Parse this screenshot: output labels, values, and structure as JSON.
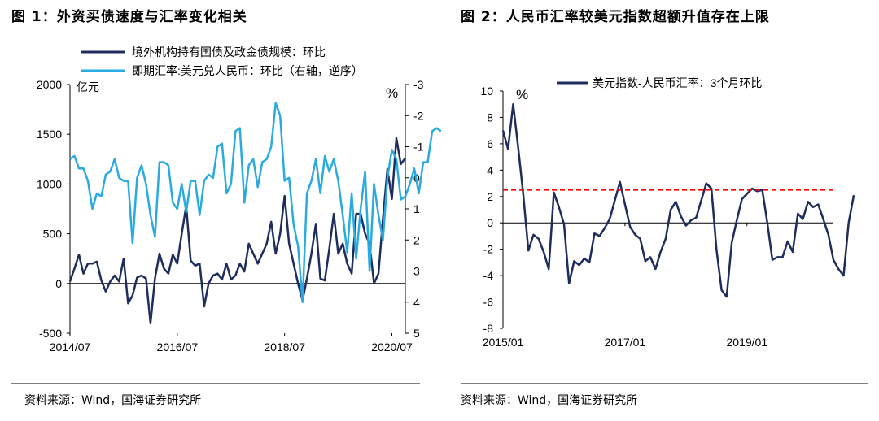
{
  "figure1": {
    "title": "图 1：外资买债速度与汇率变化相关",
    "source": "资料来源：Wind，国海证券研究所"
  },
  "figure2": {
    "title": "图 2：人民币汇率较美元指数超额升值存在上限",
    "source": "资料来源：Wind，国海证券研究所"
  },
  "chart_data": [
    {
      "type": "line",
      "left_unit": "亿元",
      "right_unit": "%",
      "xticks": [
        "2014/07",
        "2016/07",
        "2018/07",
        "2020/07"
      ],
      "x_range": [
        "2014/07",
        "2020/10"
      ],
      "yticks_left": [
        -500,
        0,
        500,
        1000,
        1500,
        2000
      ],
      "ylim_left": [
        -500,
        2000
      ],
      "yticks_right": [
        5,
        4,
        3,
        2,
        1,
        0,
        -1,
        -2,
        -3
      ],
      "ylim_right": [
        5,
        -3
      ],
      "right_axis_reversed": true,
      "legend_position": "top-left",
      "series": [
        {
          "name": "境外机构持有国债及政金债规模：环比",
          "axis": "left",
          "color": "#1f2d5e",
          "start": "2014/07",
          "values": [
            20,
            150,
            290,
            100,
            200,
            200,
            220,
            30,
            -80,
            20,
            80,
            20,
            250,
            -200,
            -120,
            60,
            80,
            50,
            -400,
            50,
            300,
            150,
            100,
            290,
            200,
            500,
            780,
            230,
            180,
            200,
            -230,
            0,
            80,
            100,
            40,
            200,
            40,
            80,
            200,
            120,
            400,
            300,
            200,
            300,
            400,
            620,
            300,
            500,
            880,
            400,
            200,
            0,
            -170,
            50,
            300,
            600,
            50,
            30,
            350,
            700,
            300,
            400,
            200,
            100,
            700,
            700,
            500,
            400,
            0,
            100,
            650,
            1150,
            850,
            1460,
            1200,
            1260
          ]
        },
        {
          "name": "即期汇率:美元兑人民币：环比（右轴，逆序）",
          "axis": "right",
          "color": "#29abe2",
          "start": "2014/07",
          "values": [
            -0.6,
            -0.7,
            -0.3,
            -0.3,
            0.1,
            1.0,
            0.5,
            0.6,
            -0.1,
            -0.2,
            -0.6,
            0.0,
            0.1,
            0.1,
            2.1,
            0.0,
            -0.4,
            0.2,
            1.2,
            1.9,
            -0.5,
            -0.5,
            -0.4,
            0.8,
            1.0,
            0.2,
            1.1,
            0.1,
            0.1,
            1.2,
            0.1,
            -0.1,
            0.0,
            -1.0,
            -1.1,
            0.5,
            0.2,
            -1.5,
            -1.6,
            0.8,
            -0.4,
            -0.6,
            0.3,
            -0.5,
            -0.6,
            -1.0,
            -2.4,
            -2.0,
            0.1,
            0.0,
            1.5,
            2.2,
            4.0,
            0.5,
            0.1,
            -0.6,
            0.5,
            -0.7,
            -0.2,
            -0.6,
            0.1,
            1.2,
            2.4,
            0.5,
            2.6,
            1.0,
            -0.2,
            3.0,
            0.2,
            1.2,
            2.0,
            0.0,
            -0.9,
            -0.6,
            0.7,
            0.6,
            0.2,
            -0.3,
            0.5,
            -0.5,
            -0.5,
            -1.5,
            -1.6,
            -1.5
          ]
        }
      ]
    },
    {
      "type": "line",
      "unit": "%",
      "xticks": [
        "2015/01",
        "2017/01",
        "2019/01"
      ],
      "x_range": [
        "2015/01",
        "2020/06"
      ],
      "yticks": [
        -8,
        -6,
        -4,
        -2,
        0,
        2,
        4,
        6,
        8,
        10
      ],
      "ylim": [
        -8,
        10
      ],
      "legend_position": "top-left",
      "series": [
        {
          "name": "美元指数-人民币汇率：3个月环比",
          "color": "#1f2d5e",
          "start": "2015/01",
          "values": [
            7.0,
            5.6,
            9.0,
            5.7,
            2.1,
            -2.1,
            -0.9,
            -1.2,
            -2.2,
            -3.5,
            2.3,
            1.2,
            -0.1,
            -4.6,
            -2.9,
            -3.2,
            -2.7,
            -3.0,
            -0.8,
            -1.0,
            -0.4,
            0.3,
            1.7,
            3.1,
            1.4,
            -0.3,
            -0.9,
            -1.2,
            -2.9,
            -2.6,
            -3.5,
            -2.2,
            -1.2,
            1.0,
            1.6,
            0.5,
            -0.2,
            0.2,
            0.4,
            1.7,
            3.0,
            2.6,
            -2.0,
            -5.1,
            -5.6,
            -1.5,
            0.2,
            1.8,
            2.2,
            2.6,
            2.4,
            2.5,
            0.0,
            -2.8,
            -2.6,
            -2.6,
            -1.4,
            -2.2,
            0.7,
            0.3,
            1.6,
            1.2,
            1.4,
            0.3,
            -0.9,
            -2.8,
            -3.5,
            -4.0,
            0.0,
            2.1
          ]
        },
        {
          "name": "",
          "kind": "reference-line",
          "style": "dashed",
          "color": "#ff0000",
          "value": 2.5
        }
      ]
    }
  ]
}
